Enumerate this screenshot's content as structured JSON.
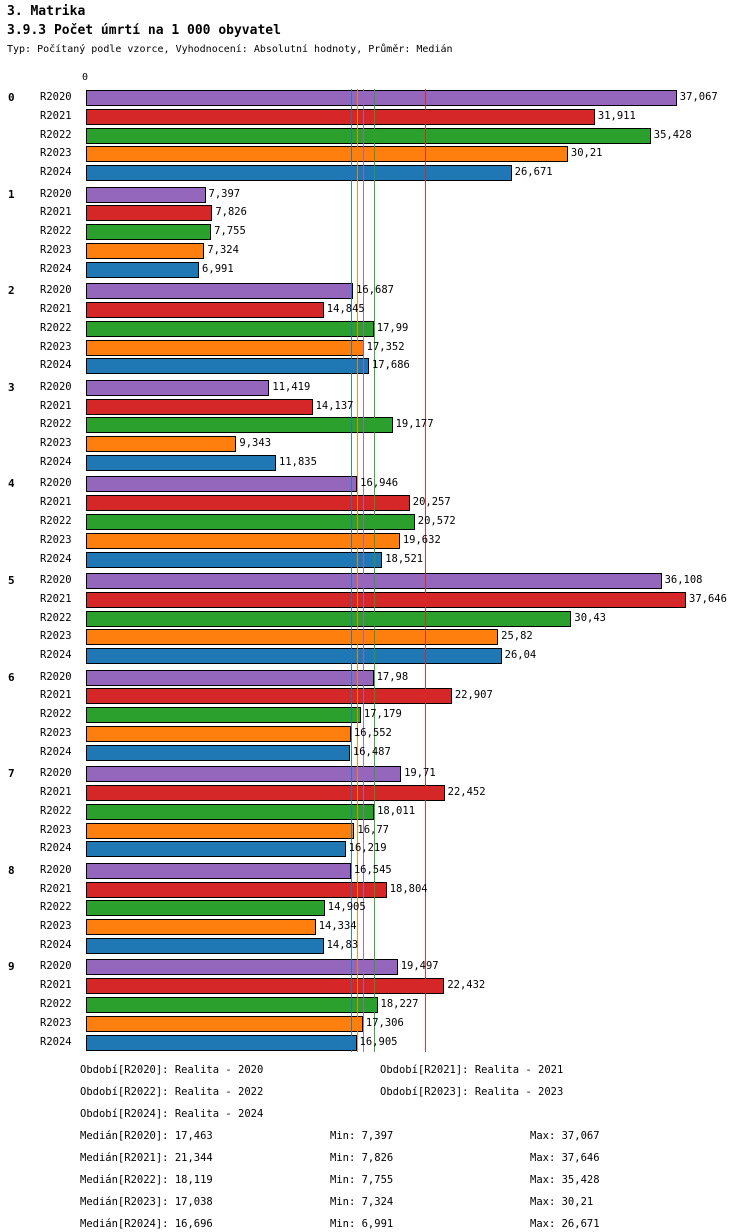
{
  "header": {
    "title": "3. Matrika",
    "subtitle": "3.9.3 Počet úmrtí na 1 000 obyvatel",
    "meta": "Typ: Počítaný podle vzorce, Vyhodnocení: Absolutní hodnoty, Průměr: Medián"
  },
  "chart_data": {
    "type": "bar",
    "orientation": "horizontal",
    "x_axis": {
      "origin_label": "0",
      "xlim": [
        0,
        37.646
      ]
    },
    "decimal_separator": ",",
    "series": [
      {
        "name": "R2020",
        "color": "#9467bd",
        "median": "17,463",
        "legend": "Období[R2020]: Realita - 2020"
      },
      {
        "name": "R2021",
        "color": "#d62728",
        "median": "21,344",
        "legend": "Období[R2021]: Realita - 2021"
      },
      {
        "name": "R2022",
        "color": "#2ca02c",
        "median": "18,119",
        "legend": "Období[R2022]: Realita - 2022"
      },
      {
        "name": "R2023",
        "color": "#ff7f0e",
        "median": "17,038",
        "legend": "Období[R2023]: Realita - 2023"
      },
      {
        "name": "R2024",
        "color": "#1f77b4",
        "median": "16,696",
        "legend": "Období[R2024]: Realita - 2024"
      }
    ],
    "groups": [
      {
        "label": "0",
        "values": [
          "37,067",
          "31,911",
          "35,428",
          "30,21",
          "26,671"
        ]
      },
      {
        "label": "1",
        "values": [
          "7,397",
          "7,826",
          "7,755",
          "7,324",
          "6,991"
        ]
      },
      {
        "label": "2",
        "values": [
          "16,687",
          "14,845",
          "17,99",
          "17,352",
          "17,686"
        ]
      },
      {
        "label": "3",
        "values": [
          "11,419",
          "14,137",
          "19,177",
          "9,343",
          "11,835"
        ]
      },
      {
        "label": "4",
        "values": [
          "16,946",
          "20,257",
          "20,572",
          "19,632",
          "18,521"
        ]
      },
      {
        "label": "5",
        "values": [
          "36,108",
          "37,646",
          "30,43",
          "25,82",
          "26,04"
        ]
      },
      {
        "label": "6",
        "values": [
          "17,98",
          "22,907",
          "17,179",
          "16,552",
          "16,487"
        ]
      },
      {
        "label": "7",
        "values": [
          "19,71",
          "22,452",
          "18,011",
          "16,77",
          "16,219"
        ]
      },
      {
        "label": "8",
        "values": [
          "16,545",
          "18,804",
          "14,905",
          "14,334",
          "14,83"
        ]
      },
      {
        "label": "9",
        "values": [
          "19,497",
          "22,432",
          "18,227",
          "17,306",
          "16,905"
        ]
      }
    ],
    "legend_rows": [
      [
        "Období[R2020]: Realita - 2020",
        "Období[R2021]: Realita - 2021"
      ],
      [
        "Období[R2022]: Realita - 2022",
        "Období[R2023]: Realita - 2023"
      ],
      [
        "Období[R2024]: Realita - 2024"
      ]
    ],
    "stats_rows": [
      [
        "Medián[R2020]: 17,463",
        "Min: 7,397",
        "Max: 37,067"
      ],
      [
        "Medián[R2021]: 21,344",
        "Min: 7,826",
        "Max: 37,646"
      ],
      [
        "Medián[R2022]: 18,119",
        "Min: 7,755",
        "Max: 35,428"
      ],
      [
        "Medián[R2023]: 17,038",
        "Min: 7,324",
        "Max: 30,21"
      ],
      [
        "Medián[R2024]: 16,696",
        "Min: 6,991",
        "Max: 26,671"
      ]
    ]
  }
}
